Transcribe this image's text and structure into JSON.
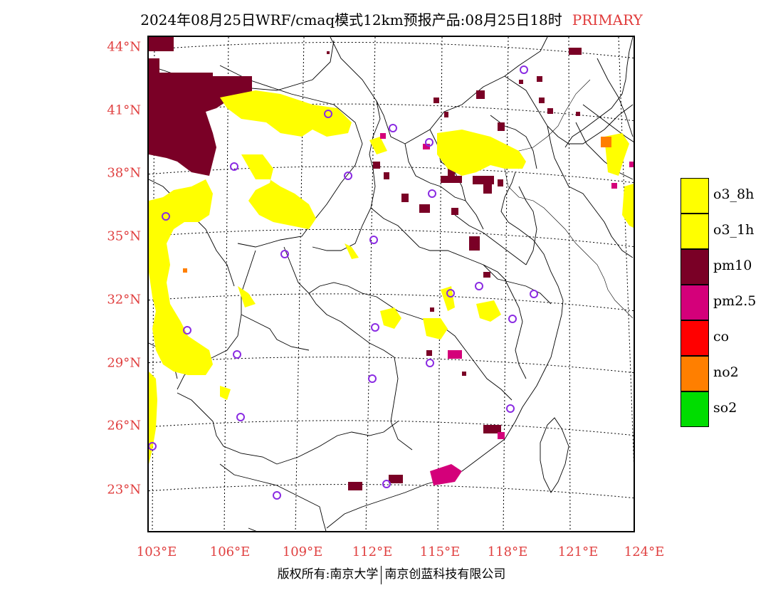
{
  "title": {
    "text": "2024年08月25日WRF/cmaq模式12km预报产品:08月25日18时",
    "tag": "PRIMARY"
  },
  "axes": {
    "lat_ticks": [
      "44°N",
      "41°N",
      "38°N",
      "35°N",
      "32°N",
      "29°N",
      "26°N",
      "23°N"
    ],
    "lon_ticks": [
      "103°E",
      "106°E",
      "109°E",
      "112°E",
      "115°E",
      "118°E",
      "121°E",
      "124°E"
    ]
  },
  "legend": [
    {
      "label": "o3_8h",
      "color": "#ffff00"
    },
    {
      "label": "o3_1h",
      "color": "#ffff00"
    },
    {
      "label": "pm10",
      "color": "#7a0026"
    },
    {
      "label": "pm2.5",
      "color": "#d4007a"
    },
    {
      "label": "co",
      "color": "#ff0000"
    },
    {
      "label": "no2",
      "color": "#ff7f00"
    },
    {
      "label": "so2",
      "color": "#00dd00"
    }
  ],
  "footer": {
    "left": "版权所有:南京大学",
    "right": "南京创蓝科技有限公司"
  },
  "colors": {
    "label_red": "#e04040",
    "o3": "#ffff00",
    "pm10": "#7a0026",
    "pm25": "#d4007a",
    "no2": "#ff7f00",
    "station_circle": "#8a2be2"
  }
}
